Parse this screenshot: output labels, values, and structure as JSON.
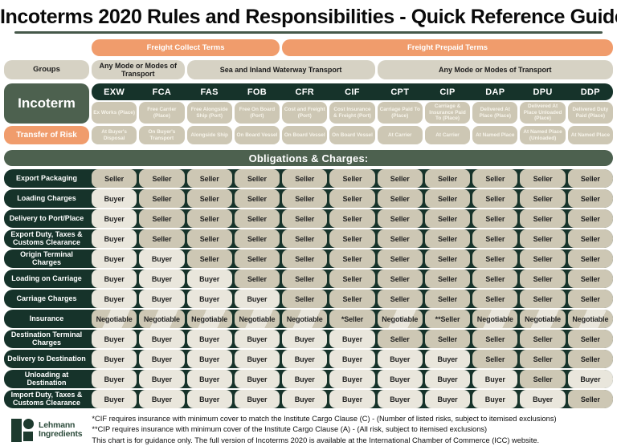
{
  "title": "Incoterms 2020  Rules and Responsibilities - Quick Reference Guide",
  "freight_bars": {
    "collect": "Freight Collect Terms",
    "prepaid": "Freight Prepaid Terms"
  },
  "groups": {
    "label": "Groups",
    "items": [
      {
        "label": "Any Mode or Modes of Transport",
        "span": 2
      },
      {
        "label": "Sea and Inland Waterway Transport",
        "span": 4
      },
      {
        "label": "Any Mode or Modes of Transport",
        "span": 5
      }
    ]
  },
  "incoterm_label": "Incoterm",
  "transfer_of_risk_label": "Transfer of Risk",
  "columns": [
    {
      "code": "EXW",
      "name": "Ex Works (Place)",
      "risk": "At Buyer's Disposal"
    },
    {
      "code": "FCA",
      "name": "Free Carrier (Place)",
      "risk": "On Buyer's Transport"
    },
    {
      "code": "FAS",
      "name": "Free Alongside Ship (Port)",
      "risk": "Alongside Ship"
    },
    {
      "code": "FOB",
      "name": "Free On Board (Port)",
      "risk": "On Board Vessel"
    },
    {
      "code": "CFR",
      "name": "Cost and Freight (Port)",
      "risk": "On Board Vessel"
    },
    {
      "code": "CIF",
      "name": "Cost Insurance & Freight (Port)",
      "risk": "On Board Vessel"
    },
    {
      "code": "CPT",
      "name": "Carriage Paid To (Place)",
      "risk": "At Carrier"
    },
    {
      "code": "CIP",
      "name": "Carriage & Insurance Paid To (Place)",
      "risk": "At Carrier"
    },
    {
      "code": "DAP",
      "name": "Delivered At Place (Place)",
      "risk": "At Named Place"
    },
    {
      "code": "DPU",
      "name": "Delivered At Place Unloaded (Place)",
      "risk": "At Named Place (Unloaded)"
    },
    {
      "code": "DDP",
      "name": "Delivered Duty Paid (Place)",
      "risk": "At Named Place"
    }
  ],
  "obligations": {
    "header": "Obligations & Charges:",
    "rows": [
      {
        "label": "Export Packaging",
        "values": [
          "Seller",
          "Seller",
          "Seller",
          "Seller",
          "Seller",
          "Seller",
          "Seller",
          "Seller",
          "Seller",
          "Seller",
          "Seller"
        ]
      },
      {
        "label": "Loading Charges",
        "values": [
          "Buyer",
          "Seller",
          "Seller",
          "Seller",
          "Seller",
          "Seller",
          "Seller",
          "Seller",
          "Seller",
          "Seller",
          "Seller"
        ]
      },
      {
        "label": "Delivery to Port/Place",
        "values": [
          "Buyer",
          "Seller",
          "Seller",
          "Seller",
          "Seller",
          "Seller",
          "Seller",
          "Seller",
          "Seller",
          "Seller",
          "Seller"
        ]
      },
      {
        "label": "Export Duty, Taxes & Customs Clearance",
        "values": [
          "Buyer",
          "Seller",
          "Seller",
          "Seller",
          "Seller",
          "Seller",
          "Seller",
          "Seller",
          "Seller",
          "Seller",
          "Seller"
        ]
      },
      {
        "label": "Origin Terminal Charges",
        "values": [
          "Buyer",
          "Buyer",
          "Seller",
          "Seller",
          "Seller",
          "Seller",
          "Seller",
          "Seller",
          "Seller",
          "Seller",
          "Seller"
        ]
      },
      {
        "label": "Loading on Carriage",
        "values": [
          "Buyer",
          "Buyer",
          "Buyer",
          "Seller",
          "Seller",
          "Seller",
          "Seller",
          "Seller",
          "Seller",
          "Seller",
          "Seller"
        ]
      },
      {
        "label": "Carriage Charges",
        "values": [
          "Buyer",
          "Buyer",
          "Buyer",
          "Buyer",
          "Seller",
          "Seller",
          "Seller",
          "Seller",
          "Seller",
          "Seller",
          "Seller"
        ]
      },
      {
        "label": "Insurance",
        "values": [
          "Negotiable",
          "Negotiable",
          "Negotiable",
          "Negotiable",
          "Negotiable",
          "*Seller",
          "Negotiable",
          "**Seller",
          "Negotiable",
          "Negotiable",
          "Negotiable"
        ]
      },
      {
        "label": "Destination Terminal Charges",
        "values": [
          "Buyer",
          "Buyer",
          "Buyer",
          "Buyer",
          "Buyer",
          "Buyer",
          "Seller",
          "Seller",
          "Seller",
          "Seller",
          "Seller"
        ]
      },
      {
        "label": "Delivery to Destination",
        "values": [
          "Buyer",
          "Buyer",
          "Buyer",
          "Buyer",
          "Buyer",
          "Buyer",
          "Buyer",
          "Buyer",
          "Seller",
          "Seller",
          "Seller"
        ]
      },
      {
        "label": "Unloading at Destination",
        "values": [
          "Buyer",
          "Buyer",
          "Buyer",
          "Buyer",
          "Buyer",
          "Buyer",
          "Buyer",
          "Buyer",
          "Buyer",
          "Seller",
          "Buyer"
        ]
      },
      {
        "label": "Import Duty, Taxes & Customs Clearance",
        "values": [
          "Buyer",
          "Buyer",
          "Buyer",
          "Buyer",
          "Buyer",
          "Buyer",
          "Buyer",
          "Buyer",
          "Buyer",
          "Buyer",
          "Seller"
        ]
      }
    ]
  },
  "footnotes": [
    "*CIF requires insurance with minimum cover to match the Institute Cargo Clause (C) - (Number of listed risks, subject to itemised exclusions)",
    "**CIP requires insurance with minimum cover of the Institute Cargo Clause (A) - (All risk, subject to itemised exclusions)",
    "This chart is for guidance only. The full version of Incoterms 2020 is available at the International Chamber of Commerce (ICC) website."
  ],
  "logo": {
    "line1": "Lehmann",
    "line2": "Ingredients"
  },
  "colors": {
    "dark_green": "#16332a",
    "sage_green": "#4d614f",
    "orange": "#f09c6c",
    "tan": "#cdc7b4",
    "cream": "#e9e6dc",
    "group_tan": "#d6d2c4",
    "logo_green": "#1d3a2e"
  }
}
